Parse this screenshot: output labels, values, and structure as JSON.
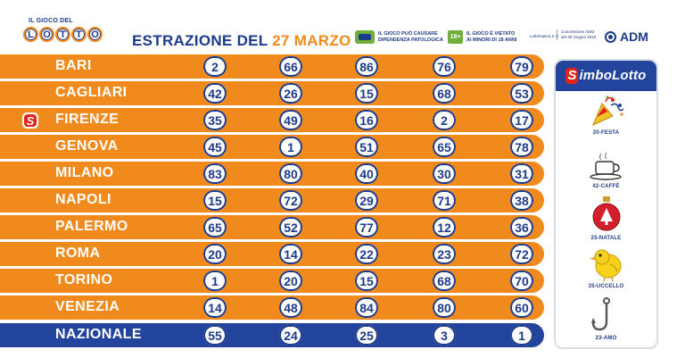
{
  "header": {
    "logo_small": "IL GIOCO DEL",
    "logo_letters": [
      "L",
      "O",
      "T",
      "T",
      "O"
    ],
    "title_prefix": "ESTRAZIONE DEL",
    "title_date": "27 MARZO",
    "warning_1": [
      "IL GIOCO PUÒ CAUSARE",
      "DIPENDENZA PATOLOGICA"
    ],
    "age_badge": "18+",
    "warning_2": [
      "IL GIOCO È VIETATO",
      "AI MINORI DI 18 ANNI"
    ],
    "legal_1": "Lottomatica S.r.l.",
    "legal_2": [
      "Concessione ADM",
      "del 30 Giugno 2016"
    ],
    "adm": "ADM"
  },
  "wheels": [
    {
      "city": "BARI",
      "numbers": [
        2,
        66,
        86,
        76,
        79
      ],
      "symbol": false
    },
    {
      "city": "CAGLIARI",
      "numbers": [
        42,
        26,
        15,
        68,
        53
      ],
      "symbol": false
    },
    {
      "city": "FIRENZE",
      "numbers": [
        35,
        49,
        16,
        2,
        17
      ],
      "symbol": true
    },
    {
      "city": "GENOVA",
      "numbers": [
        45,
        1,
        51,
        65,
        78
      ],
      "symbol": false
    },
    {
      "city": "MILANO",
      "numbers": [
        83,
        80,
        40,
        30,
        31
      ],
      "symbol": false
    },
    {
      "city": "NAPOLI",
      "numbers": [
        15,
        72,
        29,
        71,
        38
      ],
      "symbol": false
    },
    {
      "city": "PALERMO",
      "numbers": [
        65,
        52,
        77,
        12,
        36
      ],
      "symbol": false
    },
    {
      "city": "ROMA",
      "numbers": [
        20,
        14,
        22,
        23,
        72
      ],
      "symbol": false
    },
    {
      "city": "TORINO",
      "numbers": [
        1,
        20,
        15,
        68,
        70
      ],
      "symbol": false
    },
    {
      "city": "VENEZIA",
      "numbers": [
        14,
        48,
        84,
        80,
        60
      ],
      "symbol": false
    },
    {
      "city": "NAZIONALE",
      "numbers": [
        55,
        24,
        25,
        3,
        1
      ],
      "symbol": false
    }
  ],
  "simbolotto": {
    "title": "SimboLotto",
    "items": [
      {
        "label": "20-FESTA",
        "icon": "party-popper-icon"
      },
      {
        "label": "42-CAFFÈ",
        "icon": "coffee-cup-icon"
      },
      {
        "label": "25-NATALE",
        "icon": "christmas-ornament-icon"
      },
      {
        "label": "35-UCCELLO",
        "icon": "bird-icon"
      },
      {
        "label": "23-AMO",
        "icon": "fishing-hook-icon"
      }
    ]
  },
  "colors": {
    "orange": "#f08a1c",
    "navy": "#1e3b8a",
    "blue_row": "#23449c",
    "red": "#e2231a",
    "green": "#6fae3a"
  }
}
